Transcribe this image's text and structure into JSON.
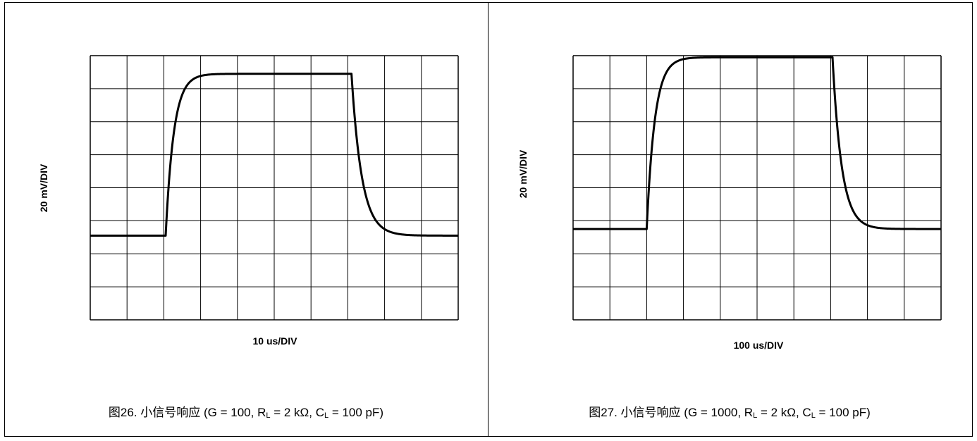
{
  "chart_data": [
    {
      "type": "line",
      "caption": {
        "prefix": "图26. 小信号响应 (G = 100, R",
        "sub1": "L",
        "mid": " = 2 kΩ, C",
        "sub2": "L",
        "suffix": " = 100 pF)"
      },
      "xlabel": "10 us/DIV",
      "ylabel": "20 mV/DIV",
      "grid": true,
      "xlim": [
        0,
        10
      ],
      "ylim": [
        0,
        8
      ],
      "divisions": {
        "x": 10,
        "y": 8
      },
      "series": [
        {
          "low": 2.55,
          "high": 7.45,
          "rise_start": 2.05,
          "rise_tau": 0.22,
          "fall_start": 7.1,
          "fall_tau": 0.28,
          "x_end": 10
        }
      ]
    },
    {
      "type": "line",
      "caption": {
        "prefix": "图27. 小信号响应 (G = 1000, R",
        "sub1": "L",
        "mid": " = 2 kΩ, C",
        "sub2": "L",
        "suffix": " = 100 pF)"
      },
      "xlabel": "100 us/DIV",
      "ylabel": "20 mV/DIV",
      "grid": true,
      "xlim": [
        0,
        10
      ],
      "ylim": [
        0,
        8
      ],
      "divisions": {
        "x": 10,
        "y": 8
      },
      "series": [
        {
          "low": 2.75,
          "high": 7.95,
          "rise_start": 2.0,
          "rise_tau": 0.22,
          "fall_start": 7.05,
          "fall_tau": 0.25,
          "x_end": 10
        }
      ]
    }
  ]
}
